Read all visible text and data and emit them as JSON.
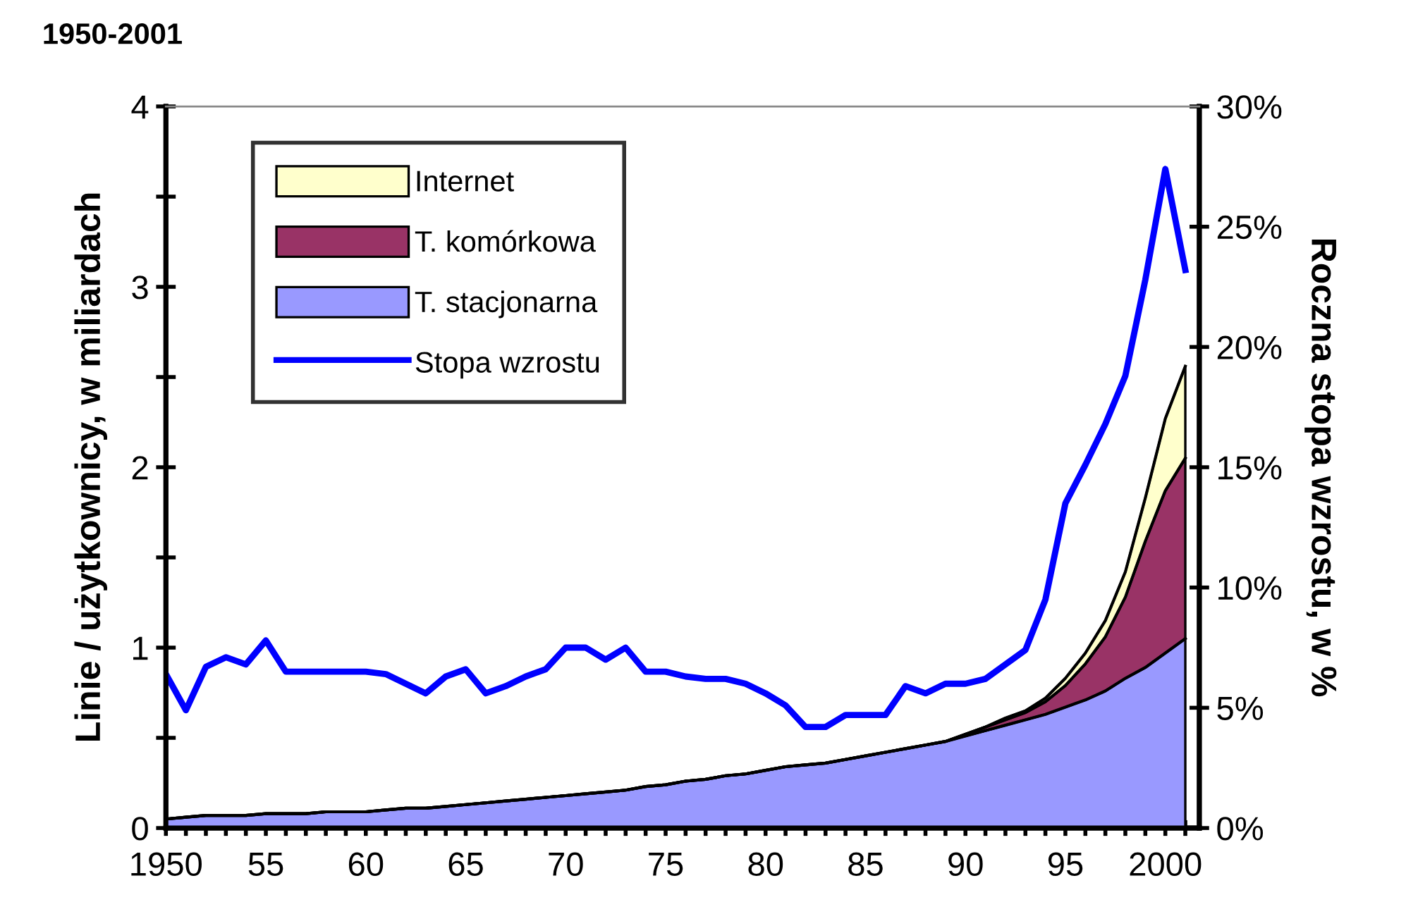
{
  "chart_data": {
    "type": "area",
    "title": "1950-2001",
    "ylabel": "Linie / użytkownicy, w miliardach",
    "y2label": "Roczna stopa wzrostu, w %",
    "x": [
      1950,
      1951,
      1952,
      1953,
      1954,
      1955,
      1956,
      1957,
      1958,
      1959,
      1960,
      1961,
      1962,
      1963,
      1964,
      1965,
      1966,
      1967,
      1968,
      1969,
      1970,
      1971,
      1972,
      1973,
      1974,
      1975,
      1976,
      1977,
      1978,
      1979,
      1980,
      1981,
      1982,
      1983,
      1984,
      1985,
      1986,
      1987,
      1988,
      1989,
      1990,
      1991,
      1992,
      1993,
      1994,
      1995,
      1996,
      1997,
      1998,
      1999,
      2000,
      2001
    ],
    "stacked": true,
    "series": [
      {
        "name": "T. stacjonarna",
        "color": "#9999ff",
        "values": [
          0.05,
          0.06,
          0.07,
          0.07,
          0.07,
          0.08,
          0.08,
          0.08,
          0.09,
          0.09,
          0.09,
          0.1,
          0.11,
          0.11,
          0.12,
          0.13,
          0.14,
          0.15,
          0.16,
          0.17,
          0.18,
          0.19,
          0.2,
          0.21,
          0.23,
          0.24,
          0.26,
          0.27,
          0.29,
          0.3,
          0.32,
          0.34,
          0.35,
          0.36,
          0.38,
          0.4,
          0.42,
          0.44,
          0.46,
          0.48,
          0.51,
          0.54,
          0.57,
          0.6,
          0.63,
          0.67,
          0.71,
          0.76,
          0.83,
          0.89,
          0.97,
          1.05
        ]
      },
      {
        "name": "T. komórkowa",
        "color": "#993366",
        "values": [
          0,
          0,
          0,
          0,
          0,
          0,
          0,
          0,
          0,
          0,
          0,
          0,
          0,
          0,
          0,
          0,
          0,
          0,
          0,
          0,
          0,
          0,
          0,
          0,
          0,
          0,
          0,
          0,
          0,
          0,
          0,
          0,
          0,
          0,
          0,
          0,
          0,
          0,
          0,
          0,
          0.01,
          0.02,
          0.03,
          0.04,
          0.07,
          0.12,
          0.2,
          0.3,
          0.45,
          0.7,
          0.9,
          1.0
        ]
      },
      {
        "name": "Internet",
        "color": "#ffffcc",
        "values": [
          0,
          0,
          0,
          0,
          0,
          0,
          0,
          0,
          0,
          0,
          0,
          0,
          0,
          0,
          0,
          0,
          0,
          0,
          0,
          0,
          0,
          0,
          0,
          0,
          0,
          0,
          0,
          0,
          0,
          0,
          0,
          0,
          0,
          0,
          0,
          0,
          0,
          0,
          0,
          0,
          0,
          0,
          0.01,
          0.01,
          0.02,
          0.04,
          0.06,
          0.09,
          0.14,
          0.24,
          0.4,
          0.51
        ]
      },
      {
        "name": "Stopa wzrostu",
        "type": "line",
        "axis": "y2",
        "color": "#0000ff",
        "values": [
          6.4,
          4.9,
          6.7,
          7.1,
          6.8,
          7.8,
          6.5,
          6.5,
          6.5,
          6.5,
          6.5,
          6.4,
          6.0,
          5.6,
          6.3,
          6.6,
          5.6,
          5.9,
          6.3,
          6.6,
          7.5,
          7.5,
          7.0,
          7.5,
          6.5,
          6.5,
          6.3,
          6.2,
          6.2,
          6.0,
          5.6,
          5.1,
          4.2,
          4.2,
          4.7,
          4.7,
          4.7,
          5.9,
          5.6,
          6.0,
          6.0,
          6.2,
          6.8,
          7.4,
          9.5,
          13.5,
          15.1,
          16.8,
          18.8,
          22.8,
          27.4,
          23.2
        ]
      }
    ],
    "xlim": [
      1950,
      2001.7
    ],
    "xticks": [
      {
        "value": 1950,
        "label": "1950"
      },
      {
        "value": 1951,
        "label": null
      },
      {
        "value": 1952,
        "label": null
      },
      {
        "value": 1953,
        "label": null
      },
      {
        "value": 1954,
        "label": null
      },
      {
        "value": 1955,
        "label": "55"
      },
      {
        "value": 1956,
        "label": null
      },
      {
        "value": 1957,
        "label": null
      },
      {
        "value": 1958,
        "label": null
      },
      {
        "value": 1959,
        "label": null
      },
      {
        "value": 1960,
        "label": "60"
      },
      {
        "value": 1961,
        "label": null
      },
      {
        "value": 1962,
        "label": null
      },
      {
        "value": 1963,
        "label": null
      },
      {
        "value": 1964,
        "label": null
      },
      {
        "value": 1965,
        "label": "65"
      },
      {
        "value": 1966,
        "label": null
      },
      {
        "value": 1967,
        "label": null
      },
      {
        "value": 1968,
        "label": null
      },
      {
        "value": 1969,
        "label": null
      },
      {
        "value": 1970,
        "label": "70"
      },
      {
        "value": 1971,
        "label": null
      },
      {
        "value": 1972,
        "label": null
      },
      {
        "value": 1973,
        "label": null
      },
      {
        "value": 1974,
        "label": null
      },
      {
        "value": 1975,
        "label": "75"
      },
      {
        "value": 1976,
        "label": null
      },
      {
        "value": 1977,
        "label": null
      },
      {
        "value": 1978,
        "label": null
      },
      {
        "value": 1979,
        "label": null
      },
      {
        "value": 1980,
        "label": "80"
      },
      {
        "value": 1981,
        "label": null
      },
      {
        "value": 1982,
        "label": null
      },
      {
        "value": 1983,
        "label": null
      },
      {
        "value": 1984,
        "label": null
      },
      {
        "value": 1985,
        "label": "85"
      },
      {
        "value": 1986,
        "label": null
      },
      {
        "value": 1987,
        "label": null
      },
      {
        "value": 1988,
        "label": null
      },
      {
        "value": 1989,
        "label": null
      },
      {
        "value": 1990,
        "label": "90"
      },
      {
        "value": 1991,
        "label": null
      },
      {
        "value": 1992,
        "label": null
      },
      {
        "value": 1993,
        "label": null
      },
      {
        "value": 1994,
        "label": null
      },
      {
        "value": 1995,
        "label": "95"
      },
      {
        "value": 1996,
        "label": null
      },
      {
        "value": 1997,
        "label": null
      },
      {
        "value": 1998,
        "label": null
      },
      {
        "value": 1999,
        "label": null
      },
      {
        "value": 2000,
        "label": "2000"
      },
      {
        "value": 2001,
        "label": null
      }
    ],
    "ylim": [
      0,
      4
    ],
    "yticks": [
      0,
      {
        "value": 0.5,
        "label": null
      },
      1,
      {
        "value": 1.5,
        "label": null
      },
      2,
      {
        "value": 2.5,
        "label": null
      },
      3,
      {
        "value": 3.5,
        "label": null
      },
      4
    ],
    "y2lim": [
      0,
      30
    ],
    "y2ticks": [
      {
        "value": 0,
        "label": "0%"
      },
      {
        "value": 5,
        "label": "5%"
      },
      {
        "value": 10,
        "label": "10%"
      },
      {
        "value": 15,
        "label": "15%"
      },
      {
        "value": 20,
        "label": "20%"
      },
      {
        "value": 25,
        "label": "25%"
      },
      {
        "value": 30,
        "label": "30%"
      }
    ],
    "legend": "top left",
    "grid": false
  }
}
